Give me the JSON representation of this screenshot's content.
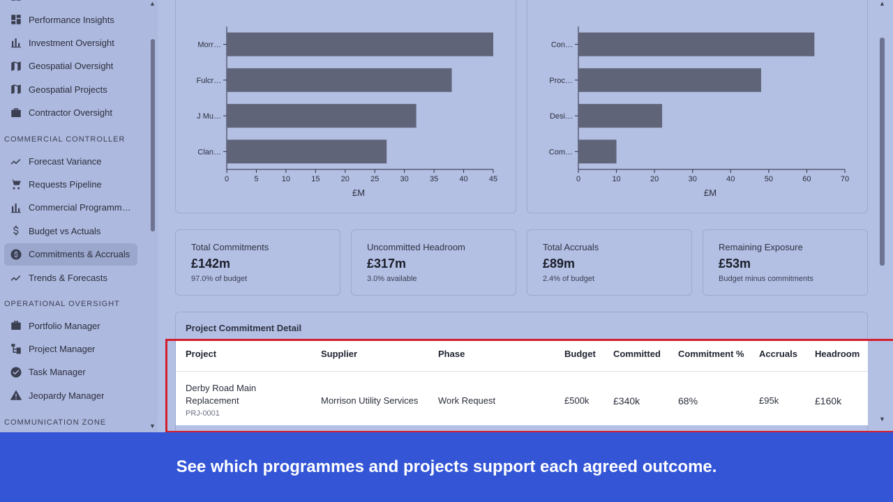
{
  "sidebar": {
    "items_top": [
      {
        "label": "Performance Insights",
        "icon": "dashboard-icon"
      },
      {
        "label": "Investment Oversight",
        "icon": "bar-chart-icon"
      },
      {
        "label": "Geospatial Oversight",
        "icon": "map-icon"
      },
      {
        "label": "Geospatial Projects",
        "icon": "map-icon"
      },
      {
        "label": "Contractor Oversight",
        "icon": "briefcase-icon"
      }
    ],
    "section_commercial": "COMMERCIAL CONTROLLER",
    "items_commercial": [
      {
        "label": "Forecast Variance",
        "icon": "trending-icon"
      },
      {
        "label": "Requests Pipeline",
        "icon": "cart-icon"
      },
      {
        "label": "Commercial Programme…",
        "icon": "bar-chart-icon"
      },
      {
        "label": "Budget vs Actuals",
        "icon": "dollar-icon"
      },
      {
        "label": "Commitments & Accruals",
        "icon": "money-circle-icon"
      },
      {
        "label": "Trends & Forecasts",
        "icon": "trending-icon"
      }
    ],
    "section_operational": "OPERATIONAL OVERSIGHT",
    "items_operational": [
      {
        "label": "Portfolio Manager",
        "icon": "briefcase-icon"
      },
      {
        "label": "Project Manager",
        "icon": "hierarchy-icon"
      },
      {
        "label": "Task Manager",
        "icon": "check-circle-icon"
      },
      {
        "label": "Jeopardy Manager",
        "icon": "warning-icon"
      }
    ],
    "section_communication": "COMMUNICATION ZONE"
  },
  "chart_data": [
    {
      "type": "bar",
      "orientation": "horizontal",
      "categories": [
        "Morr…",
        "Fulcr…",
        "J Mu…",
        "Clan…"
      ],
      "values": [
        45,
        38,
        32,
        27
      ],
      "xlabel": "£M",
      "xlim": [
        0,
        45
      ],
      "xticks": [
        0,
        5,
        10,
        15,
        20,
        25,
        30,
        35,
        40,
        45
      ],
      "color": "#5f6478"
    },
    {
      "type": "bar",
      "orientation": "horizontal",
      "categories": [
        "Con…",
        "Proc…",
        "Desi…",
        "Com…"
      ],
      "values": [
        62,
        48,
        22,
        10
      ],
      "xlabel": "£M",
      "xlim": [
        0,
        70
      ],
      "xticks": [
        0,
        10,
        20,
        30,
        40,
        50,
        60,
        70
      ],
      "color": "#5f6478"
    }
  ],
  "kpis": [
    {
      "title": "Total Commitments",
      "value": "£142m",
      "sub": "97.0% of budget"
    },
    {
      "title": "Uncommitted Headroom",
      "value": "£317m",
      "sub": "3.0% available"
    },
    {
      "title": "Total Accruals",
      "value": "£89m",
      "sub": "2.4% of budget"
    },
    {
      "title": "Remaining Exposure",
      "value": "£53m",
      "sub": "Budget minus commitments"
    }
  ],
  "detail": {
    "title": "Project Commitment Detail",
    "headers": {
      "project": "Project",
      "supplier": "Supplier",
      "phase": "Phase",
      "budget": "Budget",
      "committed": "Committed",
      "commitment_pct": "Commitment %",
      "accruals": "Accruals",
      "headroom": "Headroom"
    },
    "row": {
      "project": "Derby Road Main Replacement",
      "code": "PRJ-0001",
      "supplier": "Morrison Utility Services",
      "phase": "Work Request",
      "budget": "£500k",
      "committed": "£340k",
      "commitment_pct": "68%",
      "accruals": "£95k",
      "headroom": "£160k"
    }
  },
  "banner": "See which programmes and projects support each agreed outcome."
}
